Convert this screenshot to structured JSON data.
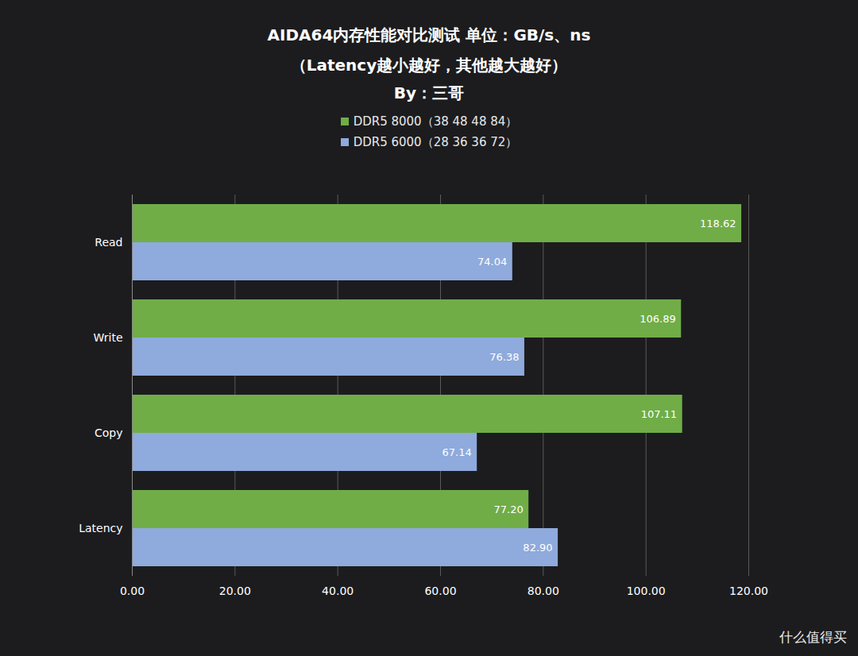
{
  "chart_data": {
    "type": "bar",
    "orientation": "horizontal",
    "title": "AIDA64内存性能对比测试 单位：GB/s、ns",
    "subtitle": "（Latency越小越好，其他越大越好）",
    "annotations": [
      "By：三哥",
      "什么值得买"
    ],
    "categories": [
      "Read",
      "Write",
      "Copy",
      "Latency"
    ],
    "series": [
      {
        "name": "DDR5 8000（38 48 48 84）",
        "color": "#70ad47",
        "values": [
          118.62,
          106.89,
          107.11,
          77.2
        ],
        "value_labels": [
          "118.62",
          "106.89",
          "107.11",
          "77.20"
        ]
      },
      {
        "name": "DDR5 6000（28 36 36 72）",
        "color": "#8faadc",
        "values": [
          74.04,
          76.38,
          67.14,
          82.9
        ],
        "value_labels": [
          "74.04",
          "76.38",
          "67.14",
          "82.90"
        ]
      }
    ],
    "xlim": [
      0,
      120
    ],
    "xticks": [
      {
        "value": 0,
        "label": "0.00"
      },
      {
        "value": 20,
        "label": "20.00"
      },
      {
        "value": 40,
        "label": "40.00"
      },
      {
        "value": 60,
        "label": "60.00"
      },
      {
        "value": 80,
        "label": "80.00"
      },
      {
        "value": 100,
        "label": "100.00"
      },
      {
        "value": 120,
        "label": "120.00"
      }
    ],
    "grid": true,
    "legend": "top",
    "data_labels": true
  }
}
